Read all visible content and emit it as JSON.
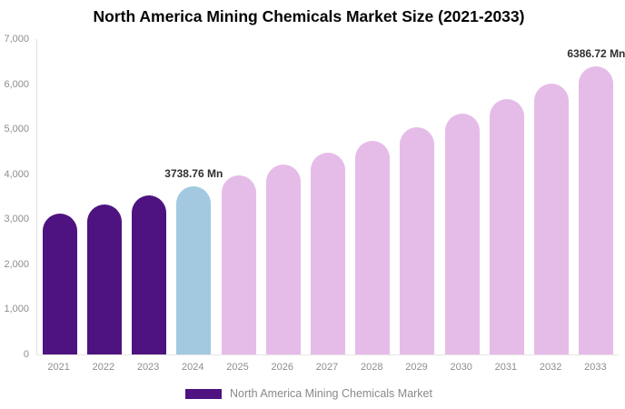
{
  "title": "North America Mining Chemicals Market Size (2021-2033)",
  "chart_data": {
    "type": "bar",
    "title": "North America Mining Chemicals Market Size (2021-2033)",
    "categories": [
      "2021",
      "2022",
      "2023",
      "2024",
      "2025",
      "2026",
      "2027",
      "2028",
      "2029",
      "2030",
      "2031",
      "2032",
      "2033"
    ],
    "values": [
      3127.6,
      3319.3,
      3522.8,
      3738.76,
      3968.0,
      4211.1,
      4469.2,
      4743.1,
      5033.8,
      5342.3,
      5669.7,
      6017.2,
      6386.72
    ],
    "unit": "Mn",
    "point_labels": {
      "2024": "3738.76 Mn",
      "2033": "6386.72 Mn"
    },
    "bar_colors": [
      "#4e1380",
      "#4e1380",
      "#4e1380",
      "#a2c9e0",
      "#e5bce8",
      "#e5bce8",
      "#e5bce8",
      "#e5bce8",
      "#e5bce8",
      "#e5bce8",
      "#e5bce8",
      "#e5bce8",
      "#e5bce8"
    ],
    "ylim": [
      0,
      7000
    ],
    "yticks": [
      0,
      1000,
      2000,
      3000,
      4000,
      5000,
      6000,
      7000
    ],
    "ytick_labels": [
      "0",
      "1,000",
      "2,000",
      "3,000",
      "4,000",
      "5,000",
      "6,000",
      "7,000"
    ],
    "xlabel": "",
    "ylabel": "",
    "grid": false,
    "legend_position": "bottom",
    "legend_entries": [
      {
        "label": "North America Mining Chemicals Market",
        "color": "#4e1380"
      }
    ]
  },
  "colors": {
    "historical_bar": "#4e1380",
    "current_year_bar": "#a2c9e0",
    "forecast_bar": "#e5bce8",
    "axis_text": "#8e8e8e",
    "axis_line": "#e0e0e0",
    "point_label_text": "#2f2f2f",
    "legend_text": "#8a8a8a",
    "background": "#ffffff"
  }
}
